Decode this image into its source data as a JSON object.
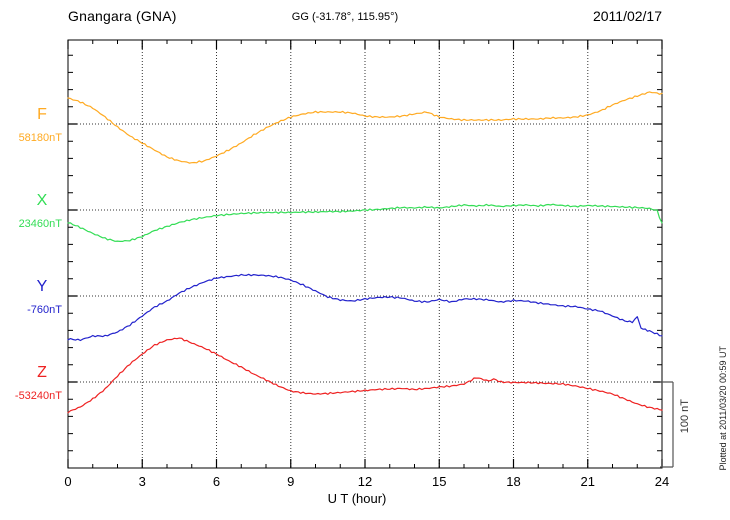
{
  "chart_data": {
    "type": "line",
    "title": "Gnangara (GNA)",
    "subtitle": "GG (-31.78°, 115.95°)",
    "date": "2011/02/17",
    "xlabel": "U T (hour)",
    "x_unit": "hour",
    "xlim": [
      0,
      24
    ],
    "x_ticks": [
      0,
      3,
      6,
      9,
      12,
      15,
      18,
      21,
      24
    ],
    "x_minor_tick_hours": 1,
    "y_minor_tick_nT": 20,
    "y_major_tick_nT": 100,
    "grid": "dotted vertical lines every 3 hours; dotted horizontal line at each component baseline",
    "legend_position": "left margin, one colored label per stacked trace",
    "y_scale_bar": {
      "label": "100 nT",
      "nT": 100
    },
    "plotted_note": "Plotted at 2011/03/20 00:59 UT",
    "offset_unit": "nT relative to baseline_nT",
    "series": [
      {
        "name": "F",
        "baseline_label": "58180nT",
        "baseline_nT": 58180,
        "color": "#FFAA22",
        "points": [
          [
            0,
            30.6
          ],
          [
            0.5,
            25.9
          ],
          [
            1,
            18.8
          ],
          [
            1.5,
            8.2
          ],
          [
            2,
            -3.5
          ],
          [
            2.5,
            -14.1
          ],
          [
            3,
            -22.4
          ],
          [
            3.5,
            -30.6
          ],
          [
            4,
            -38.8
          ],
          [
            4.5,
            -43.5
          ],
          [
            5,
            -45.9
          ],
          [
            5.5,
            -43.5
          ],
          [
            6,
            -37.6
          ],
          [
            6.5,
            -30.6
          ],
          [
            7,
            -22.4
          ],
          [
            7.5,
            -12.9
          ],
          [
            8,
            -4.7
          ],
          [
            8.5,
            2.4
          ],
          [
            9,
            8.2
          ],
          [
            9.5,
            11.8
          ],
          [
            10,
            14.1
          ],
          [
            10.5,
            14.1
          ],
          [
            11,
            14.1
          ],
          [
            11.5,
            12.9
          ],
          [
            12,
            9.4
          ],
          [
            12.5,
            8.2
          ],
          [
            13,
            8.2
          ],
          [
            13.5,
            9.4
          ],
          [
            14,
            11.8
          ],
          [
            14.5,
            14.1
          ],
          [
            15,
            8.2
          ],
          [
            15.5,
            5.9
          ],
          [
            16,
            4.7
          ],
          [
            16.5,
            4.7
          ],
          [
            17,
            4.7
          ],
          [
            17.5,
            4.7
          ],
          [
            18,
            5.9
          ],
          [
            18.5,
            5.9
          ],
          [
            19,
            5.9
          ],
          [
            19.5,
            7.1
          ],
          [
            20,
            7.1
          ],
          [
            20.5,
            8.2
          ],
          [
            21,
            10.6
          ],
          [
            21.5,
            15.3
          ],
          [
            22,
            22.4
          ],
          [
            22.5,
            28.2
          ],
          [
            23,
            32.9
          ],
          [
            23.5,
            37.6
          ],
          [
            24,
            35.3
          ]
        ]
      },
      {
        "name": "X",
        "baseline_label": "23460nT",
        "baseline_nT": 23460,
        "color": "#33DD55",
        "points": [
          [
            0,
            -14.7
          ],
          [
            0.5,
            -20.6
          ],
          [
            1,
            -27.6
          ],
          [
            1.5,
            -33.5
          ],
          [
            2,
            -37.1
          ],
          [
            2.5,
            -35.9
          ],
          [
            3,
            -31.2
          ],
          [
            3.5,
            -24.1
          ],
          [
            4,
            -19.4
          ],
          [
            4.5,
            -14.7
          ],
          [
            5,
            -11.2
          ],
          [
            5.5,
            -8.8
          ],
          [
            6,
            -6.5
          ],
          [
            6.5,
            -5.3
          ],
          [
            7,
            -4.1
          ],
          [
            7.5,
            -3.5
          ],
          [
            8,
            -2.9
          ],
          [
            8.5,
            -2.9
          ],
          [
            9,
            -2.9
          ],
          [
            9.5,
            -2.4
          ],
          [
            10,
            -2.4
          ],
          [
            10.5,
            -1.8
          ],
          [
            11,
            -1.8
          ],
          [
            11.5,
            -1.2
          ],
          [
            12,
            0
          ],
          [
            12.5,
            0.6
          ],
          [
            13,
            1.8
          ],
          [
            13.5,
            2.9
          ],
          [
            14,
            2.4
          ],
          [
            14.5,
            3.5
          ],
          [
            15,
            2.4
          ],
          [
            15.5,
            4.1
          ],
          [
            16,
            5.9
          ],
          [
            16.5,
            4.7
          ],
          [
            17,
            5.9
          ],
          [
            17.5,
            4.1
          ],
          [
            18,
            5.3
          ],
          [
            18.5,
            5.9
          ],
          [
            19,
            4.7
          ],
          [
            19.5,
            6.5
          ],
          [
            20,
            5.3
          ],
          [
            20.5,
            4.1
          ],
          [
            21,
            5.3
          ],
          [
            21.5,
            4.7
          ],
          [
            22,
            4.1
          ],
          [
            22.5,
            3.5
          ],
          [
            23,
            2.9
          ],
          [
            23.5,
            1.8
          ],
          [
            23.8,
            -0.6
          ],
          [
            24,
            -15.9
          ]
        ]
      },
      {
        "name": "Y",
        "baseline_label": "-760nT",
        "baseline_nT": -760,
        "color": "#2222CC",
        "points": [
          [
            0,
            -50.6
          ],
          [
            0.5,
            -51.8
          ],
          [
            1,
            -47.1
          ],
          [
            1.5,
            -47.1
          ],
          [
            2,
            -42.4
          ],
          [
            2.5,
            -34.1
          ],
          [
            3,
            -23.5
          ],
          [
            3.5,
            -12.9
          ],
          [
            4,
            -5.9
          ],
          [
            4.5,
            3.5
          ],
          [
            5,
            10.6
          ],
          [
            5.5,
            16.5
          ],
          [
            6,
            21.2
          ],
          [
            6.5,
            22.9
          ],
          [
            7,
            24.7
          ],
          [
            7.5,
            24.7
          ],
          [
            8,
            24.1
          ],
          [
            8.5,
            22.4
          ],
          [
            9,
            18.8
          ],
          [
            9.5,
            12.9
          ],
          [
            10,
            5.9
          ],
          [
            10.5,
            -1.2
          ],
          [
            11,
            -4.7
          ],
          [
            11.5,
            -5.9
          ],
          [
            12,
            -3.5
          ],
          [
            12.5,
            -1.8
          ],
          [
            13,
            -1.2
          ],
          [
            13.5,
            -2.4
          ],
          [
            14,
            -5.9
          ],
          [
            14.5,
            -7.1
          ],
          [
            15,
            -4.1
          ],
          [
            15.5,
            -7.1
          ],
          [
            16,
            -3.5
          ],
          [
            16.5,
            -3.5
          ],
          [
            17,
            -4.7
          ],
          [
            17.5,
            -7.1
          ],
          [
            18,
            -5.3
          ],
          [
            18.5,
            -5.9
          ],
          [
            19,
            -8.2
          ],
          [
            19.5,
            -10.0
          ],
          [
            20,
            -11.8
          ],
          [
            20.5,
            -12.4
          ],
          [
            21,
            -15.3
          ],
          [
            21.5,
            -17.6
          ],
          [
            22,
            -23.5
          ],
          [
            22.5,
            -29.4
          ],
          [
            22.8,
            -30.6
          ],
          [
            23,
            -24.5
          ],
          [
            23.15,
            -38.0
          ],
          [
            23.5,
            -41.2
          ],
          [
            24,
            -47.1
          ]
        ]
      },
      {
        "name": "Z",
        "baseline_label": "-53240nT",
        "baseline_nT": -53240,
        "color": "#EE2222",
        "points": [
          [
            0,
            -35.3
          ],
          [
            0.5,
            -29.4
          ],
          [
            1,
            -20.0
          ],
          [
            1.5,
            -8.2
          ],
          [
            2,
            7.1
          ],
          [
            2.5,
            21.2
          ],
          [
            3,
            32.9
          ],
          [
            3.5,
            43.5
          ],
          [
            4,
            49.4
          ],
          [
            4.5,
            51.8
          ],
          [
            5,
            45.9
          ],
          [
            5.5,
            40.0
          ],
          [
            6,
            32.9
          ],
          [
            6.5,
            24.7
          ],
          [
            7,
            17.6
          ],
          [
            7.5,
            9.4
          ],
          [
            8,
            2.4
          ],
          [
            8.5,
            -4.7
          ],
          [
            9,
            -10.6
          ],
          [
            9.5,
            -12.9
          ],
          [
            10,
            -14.1
          ],
          [
            10.5,
            -13.5
          ],
          [
            11,
            -12.4
          ],
          [
            11.5,
            -11.2
          ],
          [
            12,
            -10.0
          ],
          [
            12.5,
            -8.8
          ],
          [
            13,
            -8.2
          ],
          [
            13.5,
            -7.6
          ],
          [
            14,
            -8.8
          ],
          [
            14.5,
            -7.6
          ],
          [
            15,
            -5.9
          ],
          [
            15.5,
            -4.7
          ],
          [
            16,
            -2.4
          ],
          [
            16.5,
            5.3
          ],
          [
            17,
            1.2
          ],
          [
            17.2,
            3.5
          ],
          [
            17.5,
            0
          ],
          [
            18,
            -0.6
          ],
          [
            18.5,
            -0.6
          ],
          [
            19,
            -1.2
          ],
          [
            19.5,
            -1.8
          ],
          [
            20,
            -2.4
          ],
          [
            20.5,
            -4.7
          ],
          [
            21,
            -7.6
          ],
          [
            21.5,
            -10.6
          ],
          [
            22,
            -14.1
          ],
          [
            22.5,
            -20.0
          ],
          [
            23,
            -25.9
          ],
          [
            23.5,
            -30.0
          ],
          [
            24,
            -32.9
          ]
        ]
      }
    ]
  }
}
